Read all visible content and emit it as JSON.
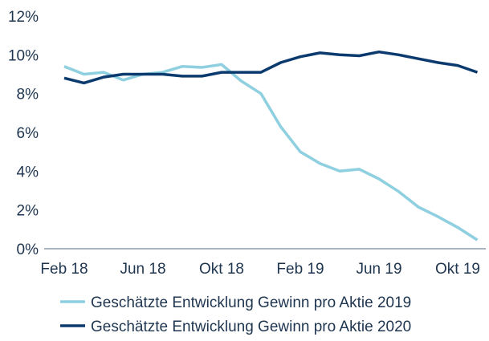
{
  "chart_data": {
    "type": "line",
    "title": "",
    "xlabel": "",
    "ylabel": "",
    "ylim": [
      0,
      12
    ],
    "yticks": [
      "0%",
      "2%",
      "4%",
      "6%",
      "8%",
      "10%",
      "12%"
    ],
    "ytick_values": [
      0,
      2,
      4,
      6,
      8,
      10,
      12
    ],
    "xtick_labels": [
      "Feb 18",
      "Jun 18",
      "Okt 18",
      "Feb 19",
      "Jun 19",
      "Okt 19"
    ],
    "xtick_indices": [
      0,
      4,
      8,
      12,
      16,
      20
    ],
    "x": [
      "Feb 18",
      "Mär 18",
      "Apr 18",
      "Mai 18",
      "Jun 18",
      "Jul 18",
      "Aug 18",
      "Sep 18",
      "Okt 18",
      "Nov 18",
      "Dez 18",
      "Jan 19",
      "Feb 19",
      "Mär 19",
      "Apr 19",
      "Mai 19",
      "Jun 19",
      "Jul 19",
      "Aug 19",
      "Sep 19",
      "Okt 19",
      "Nov 19"
    ],
    "grid": false,
    "legend_position": "bottom",
    "series": [
      {
        "name": "Geschätzte Entwicklung Gewinn pro Aktie 2019",
        "color": "#8ecfe0",
        "values": [
          9.4,
          9.0,
          9.1,
          8.7,
          9.0,
          9.1,
          9.4,
          9.35,
          9.5,
          8.65,
          8.0,
          6.3,
          5.0,
          4.4,
          4.0,
          4.1,
          3.6,
          2.95,
          2.15,
          1.65,
          1.1,
          0.45
        ]
      },
      {
        "name": "Geschätzte Entwicklung Gewinn pro Aktie 2020",
        "color": "#0b3a6e",
        "values": [
          8.8,
          8.55,
          8.85,
          9.0,
          9.0,
          9.0,
          8.9,
          8.9,
          9.1,
          9.1,
          9.1,
          9.6,
          9.9,
          10.1,
          10.0,
          9.95,
          10.15,
          10.0,
          9.8,
          9.6,
          9.45,
          9.1
        ]
      }
    ]
  }
}
